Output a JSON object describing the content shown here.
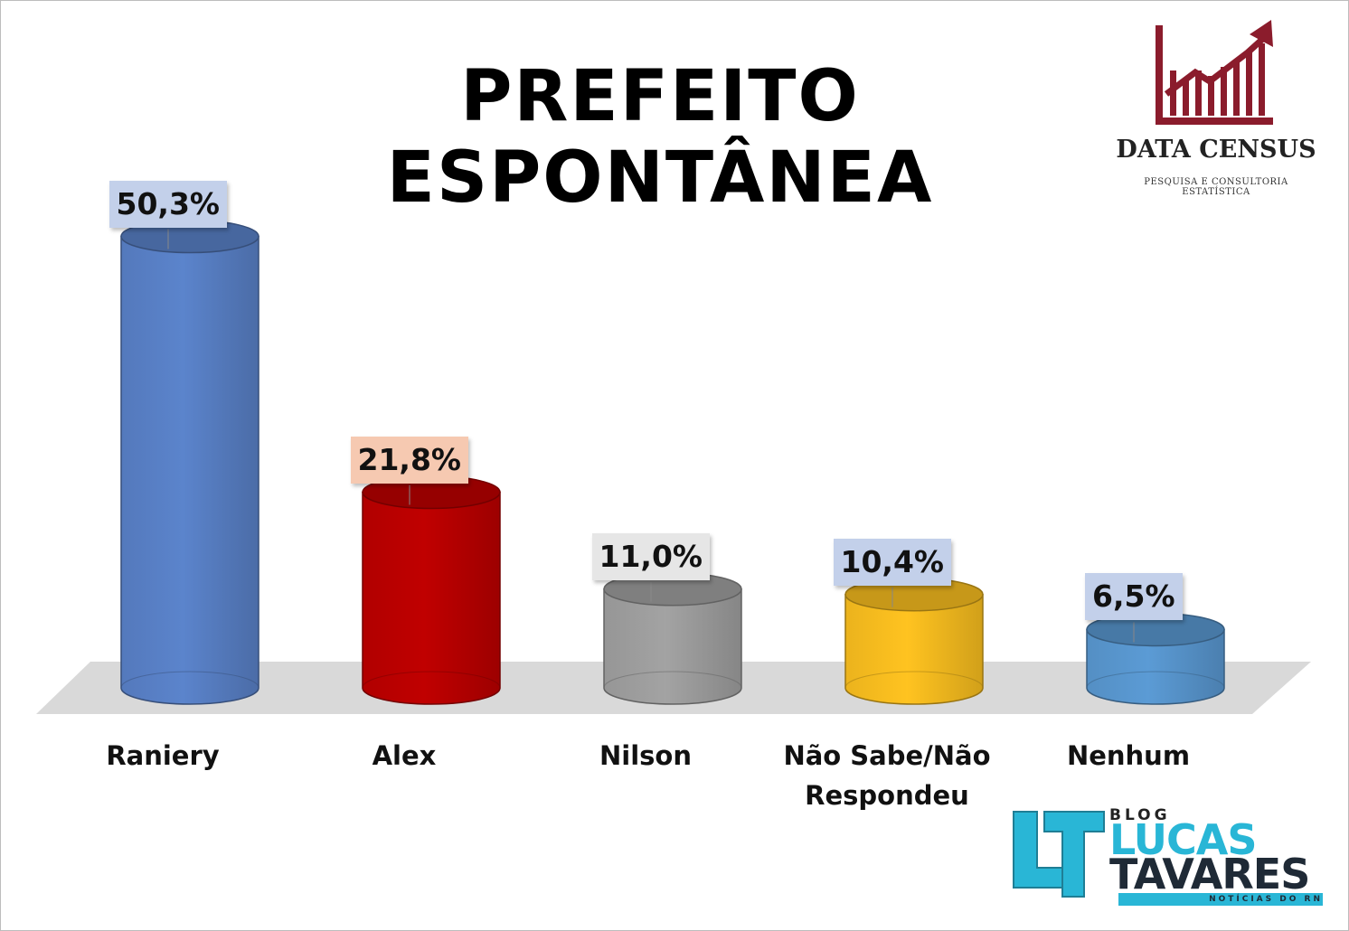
{
  "title": "PREFEITO ESPONTÂNEA",
  "brand": {
    "name": "DATA CENSUS",
    "subtitle": "PESQUISA E CONSULTORIA ESTATÍSTICA",
    "color": "#8b1c2c"
  },
  "blog": {
    "small": "BLOG",
    "line1": "LUCAS",
    "line2": "TAVARES",
    "tagline": "NOTÍCIAS DO RN",
    "accent": "#29b6d6",
    "dark": "#1f2a36"
  },
  "chart_data": {
    "type": "bar",
    "style": "3d-cylinder",
    "title": "PREFEITO ESPONTÂNEA",
    "categories": [
      "Raniery",
      "Alex",
      "Nilson",
      "Não Sabe/Não Respondeu",
      "Nenhum"
    ],
    "category_lines": [
      [
        "Raniery"
      ],
      [
        "Alex"
      ],
      [
        "Nilson"
      ],
      [
        "Não Sabe/Não",
        "Respondeu"
      ],
      [
        "Nenhum"
      ]
    ],
    "values": [
      50.3,
      21.8,
      11.0,
      10.4,
      6.5
    ],
    "value_labels": [
      "50,3%",
      "21,8%",
      "11,0%",
      "10,4%",
      "6,5%"
    ],
    "colors": [
      "#5b84cc",
      "#c00000",
      "#a3a3a3",
      "#ffc320",
      "#5b9bd5"
    ],
    "label_bg": [
      "#c3d0ea",
      "#f6c9b1",
      "#e6e6e6",
      "#c3d0ea",
      "#c3d0ea"
    ],
    "xlabel": "",
    "ylabel": "",
    "grid": false,
    "legend": "none"
  }
}
